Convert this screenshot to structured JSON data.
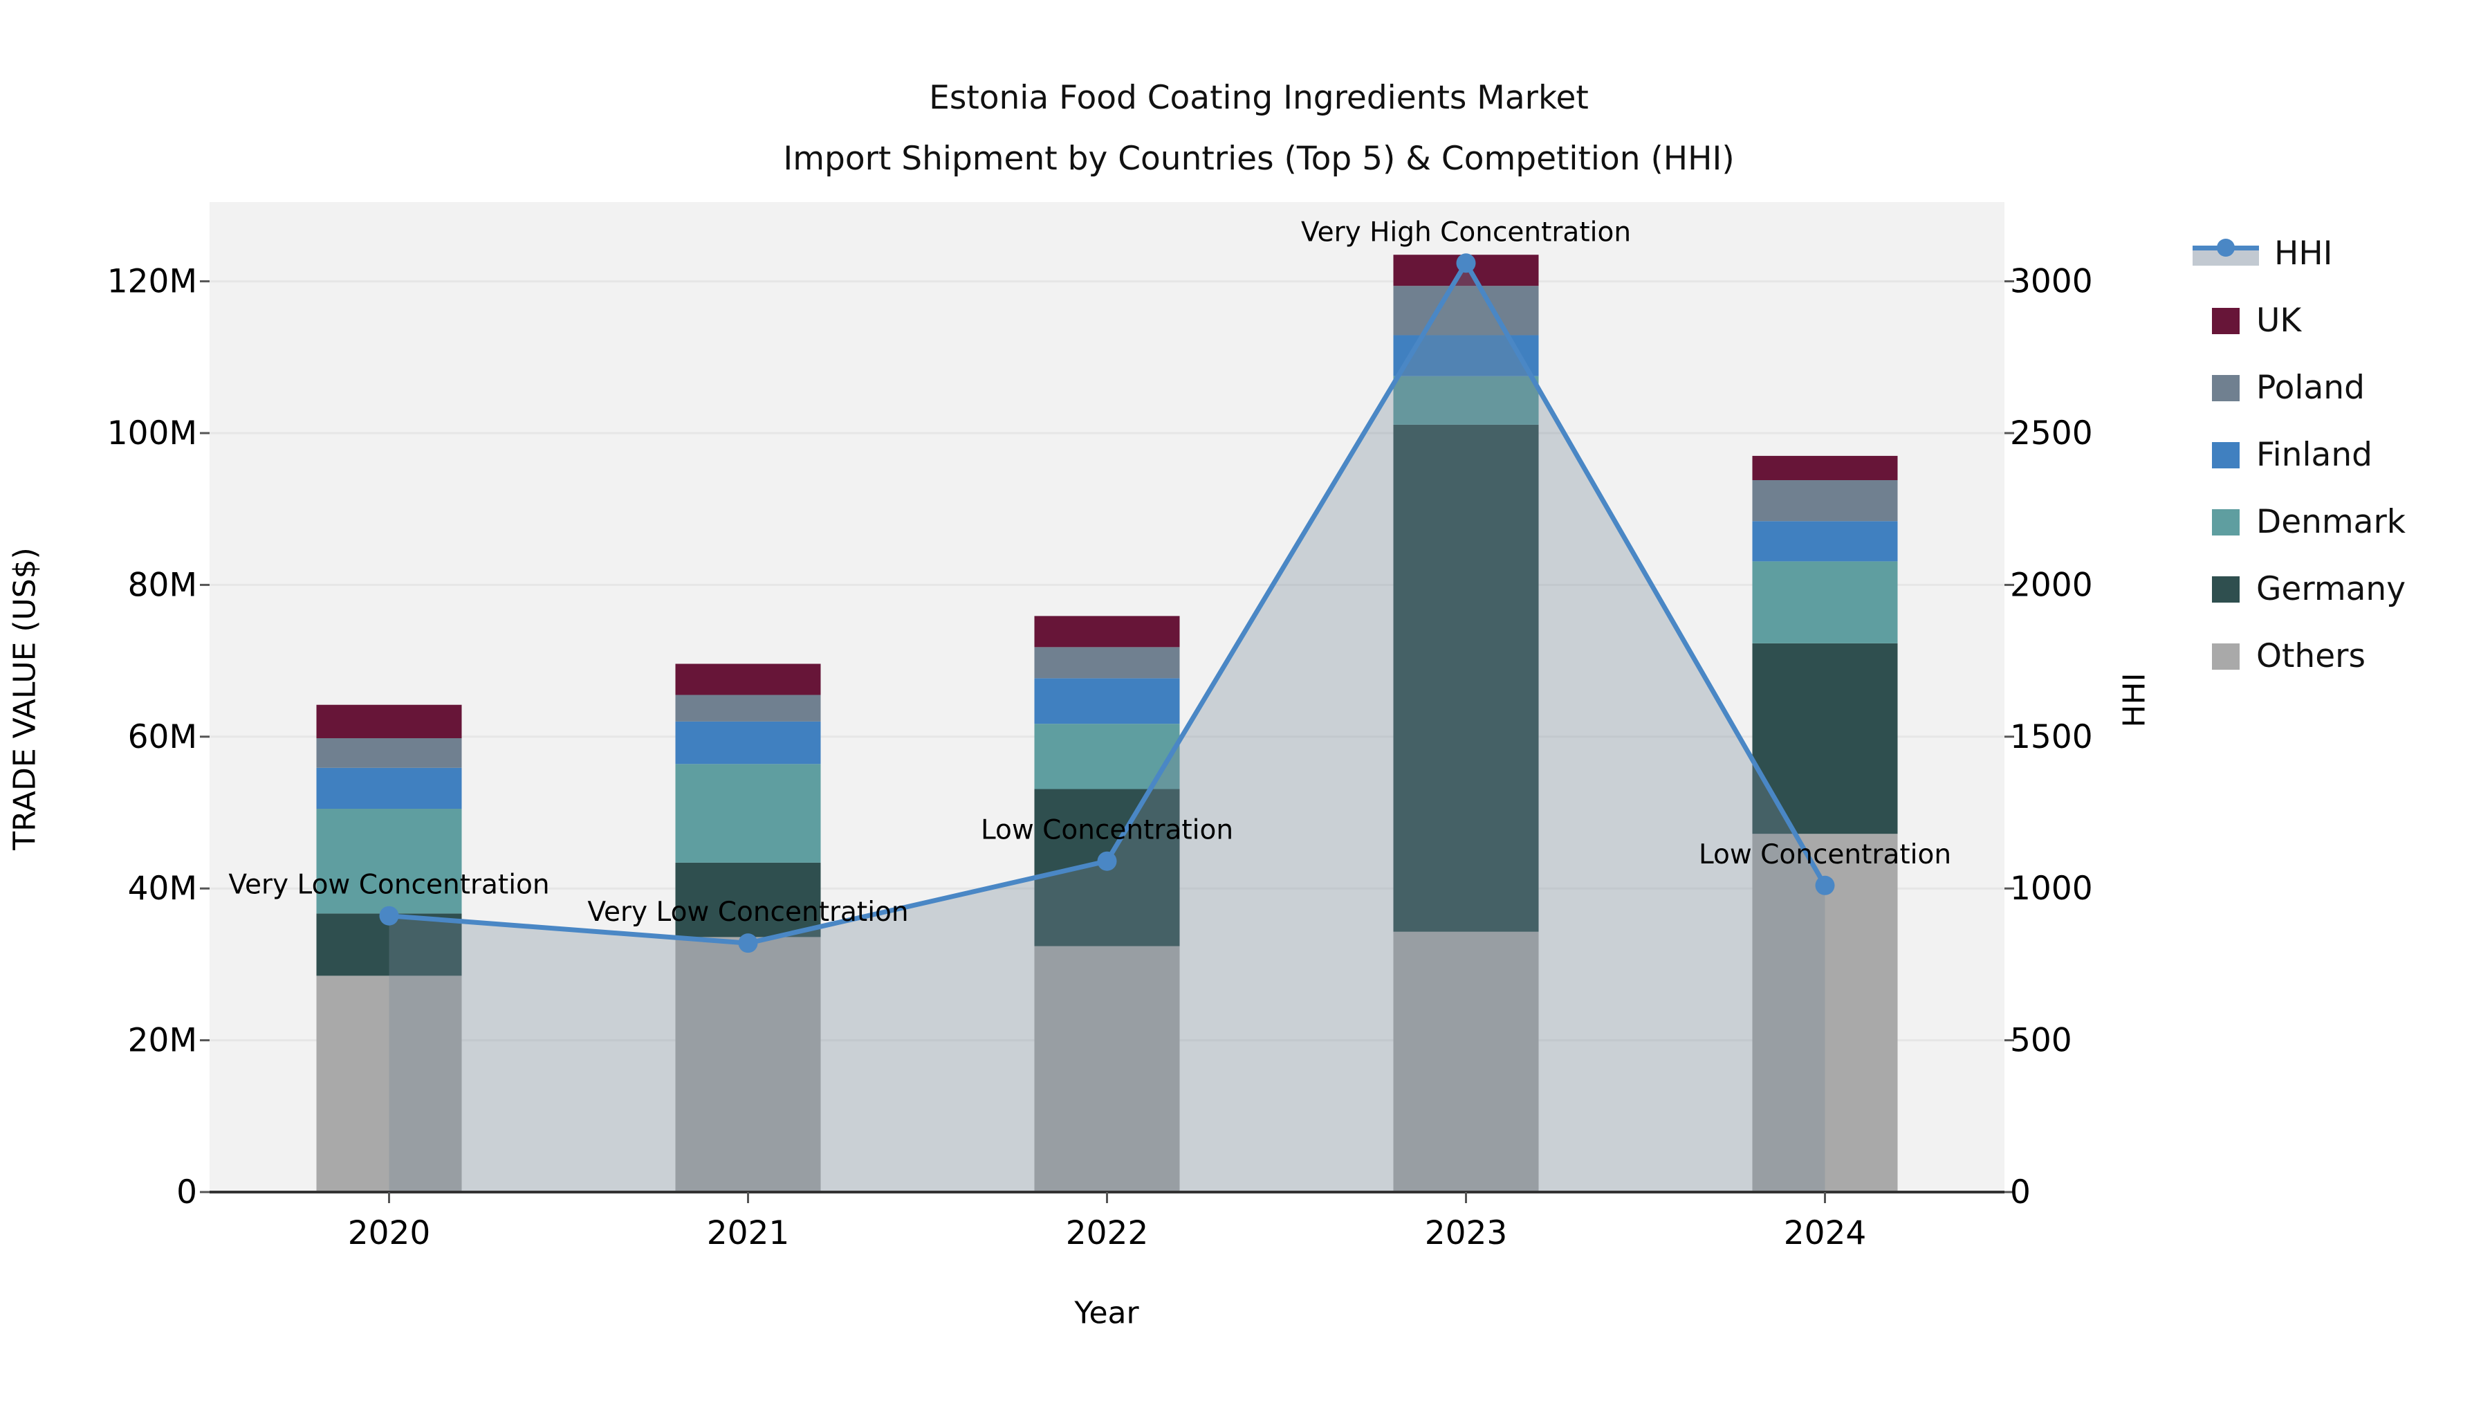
{
  "title": {
    "line1": "Estonia Food Coating Ingredients Market",
    "line2": "Import Shipment by Countries (Top 5) & Competition (HHI)"
  },
  "axes": {
    "x_label": "Year",
    "y_left_label": "TRADE VALUE (US$)",
    "y_right_label": "HHI",
    "y_left_ticks": [
      "0",
      "20M",
      "40M",
      "60M",
      "80M",
      "100M",
      "120M"
    ],
    "y_right_ticks": [
      "0",
      "500",
      "1000",
      "1500",
      "2000",
      "2500",
      "3000"
    ]
  },
  "legend": {
    "items": [
      {
        "label": "HHI",
        "kind": "line"
      },
      {
        "label": "UK",
        "kind": "patch",
        "color": "#671538"
      },
      {
        "label": "Poland",
        "kind": "patch",
        "color": "#708090"
      },
      {
        "label": "Finland",
        "kind": "patch",
        "color": "#4080c0"
      },
      {
        "label": "Denmark",
        "kind": "patch",
        "color": "#5f9ea0"
      },
      {
        "label": "Germany",
        "kind": "patch",
        "color": "#2f4f4f"
      },
      {
        "label": "Others",
        "kind": "patch",
        "color": "#a9a9a9"
      }
    ]
  },
  "colors": {
    "plot_bg": "#f2f2f2",
    "grid": "#e6e6e6",
    "axis_line": "#333333",
    "hhi_line": "#4a87c5",
    "hhi_area": "#778899",
    "hhi_area_opacity": 0.32,
    "uk": "#671538",
    "poland": "#708090",
    "finland": "#4080c0",
    "denmark": "#5f9ea0",
    "germany": "#2f4f4f",
    "others": "#a9a9a9"
  },
  "chart_data": {
    "type": "combo-stacked-bar-line",
    "title": "Estonia Food Coating Ingredients Market — Import Shipment by Countries (Top 5) & Competition (HHI)",
    "xlabel": "Year",
    "ylabel_left": "TRADE VALUE (US$)",
    "ylabel_right": "HHI",
    "categories": [
      "2020",
      "2021",
      "2022",
      "2023",
      "2024"
    ],
    "bar_value_unit": "million US$",
    "stack_order_bottom_to_top": [
      "Others",
      "Germany",
      "Denmark",
      "Finland",
      "Poland",
      "UK"
    ],
    "series": [
      {
        "name": "Others",
        "type": "bar",
        "color": "#a9a9a9",
        "values": [
          28.5,
          33.6,
          32.4,
          34.3,
          47.2
        ]
      },
      {
        "name": "Germany",
        "type": "bar",
        "color": "#2f4f4f",
        "values": [
          8.2,
          9.8,
          20.7,
          66.8,
          25.1
        ]
      },
      {
        "name": "Denmark",
        "type": "bar",
        "color": "#5f9ea0",
        "values": [
          13.8,
          13.0,
          8.6,
          6.4,
          10.8
        ]
      },
      {
        "name": "Finland",
        "type": "bar",
        "color": "#4080c0",
        "values": [
          5.4,
          5.6,
          6.0,
          5.4,
          5.3
        ]
      },
      {
        "name": "Poland",
        "type": "bar",
        "color": "#708090",
        "values": [
          3.9,
          3.5,
          4.1,
          6.5,
          5.4
        ]
      },
      {
        "name": "UK",
        "type": "bar",
        "color": "#671538",
        "values": [
          4.4,
          4.1,
          4.1,
          4.1,
          3.2
        ]
      }
    ],
    "bar_totals": [
      64.2,
      69.6,
      75.9,
      123.5,
      97.0
    ],
    "line_series": {
      "name": "HHI",
      "axis": "right",
      "color": "#4a87c5",
      "area_fill": true,
      "values": [
        910,
        820,
        1090,
        3060,
        1010
      ]
    },
    "annotations": [
      {
        "category": "2020",
        "text": "Very Low Concentration"
      },
      {
        "category": "2021",
        "text": "Very Low Concentration"
      },
      {
        "category": "2022",
        "text": "Low Concentration"
      },
      {
        "category": "2023",
        "text": "Very High Concentration"
      },
      {
        "category": "2024",
        "text": "Low Concentration"
      }
    ],
    "ylim_left_millions": [
      0,
      130.5
    ],
    "ylim_right": [
      0,
      3262
    ],
    "grid": "horizontal",
    "legend_position": "right"
  }
}
